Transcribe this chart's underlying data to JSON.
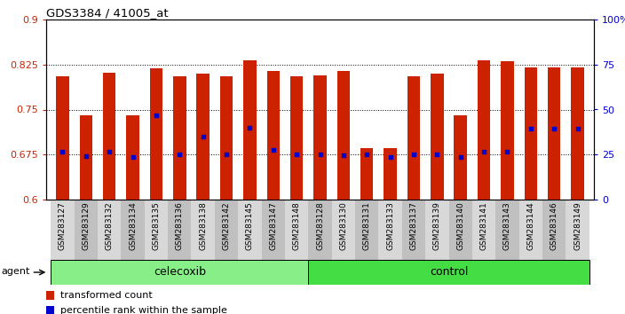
{
  "title": "GDS3384 / 41005_at",
  "samples": [
    "GSM283127",
    "GSM283129",
    "GSM283132",
    "GSM283134",
    "GSM283135",
    "GSM283136",
    "GSM283138",
    "GSM283142",
    "GSM283145",
    "GSM283147",
    "GSM283148",
    "GSM283128",
    "GSM283130",
    "GSM283131",
    "GSM283133",
    "GSM283137",
    "GSM283139",
    "GSM283140",
    "GSM283141",
    "GSM283143",
    "GSM283144",
    "GSM283146",
    "GSM283149"
  ],
  "bar_values": [
    0.805,
    0.74,
    0.812,
    0.74,
    0.818,
    0.805,
    0.81,
    0.805,
    0.832,
    0.815,
    0.805,
    0.807,
    0.815,
    0.685,
    0.685,
    0.805,
    0.81,
    0.74,
    0.832,
    0.83,
    0.82,
    0.82,
    0.82
  ],
  "blue_dot_values": [
    0.68,
    0.672,
    0.68,
    0.671,
    0.74,
    0.676,
    0.705,
    0.676,
    0.72,
    0.683,
    0.676,
    0.676,
    0.674,
    0.676,
    0.671,
    0.676,
    0.676,
    0.671,
    0.68,
    0.68,
    0.718,
    0.718,
    0.718
  ],
  "celecoxib_count": 11,
  "control_count": 12,
  "ylim_left": [
    0.6,
    0.9
  ],
  "yticks_left": [
    0.6,
    0.675,
    0.75,
    0.825,
    0.9
  ],
  "ytick_labels_left": [
    "0.6",
    "0.675",
    "0.75",
    "0.825",
    "0.9"
  ],
  "ylim_right": [
    0,
    100
  ],
  "yticks_right": [
    0,
    25,
    50,
    75,
    100
  ],
  "ytick_labels_right": [
    "0",
    "25",
    "50",
    "75",
    "100%"
  ],
  "bar_color": "#cc2200",
  "dot_color": "#0000cc",
  "celecoxib_color": "#88ee88",
  "control_color": "#44dd44",
  "xtick_bg_odd": "#d8d8d8",
  "xtick_bg_even": "#c0c0c0",
  "agent_label": "agent",
  "celecoxib_label": "celecoxib",
  "control_label": "control",
  "legend_bar_label": "transformed count",
  "legend_dot_label": "percentile rank within the sample"
}
